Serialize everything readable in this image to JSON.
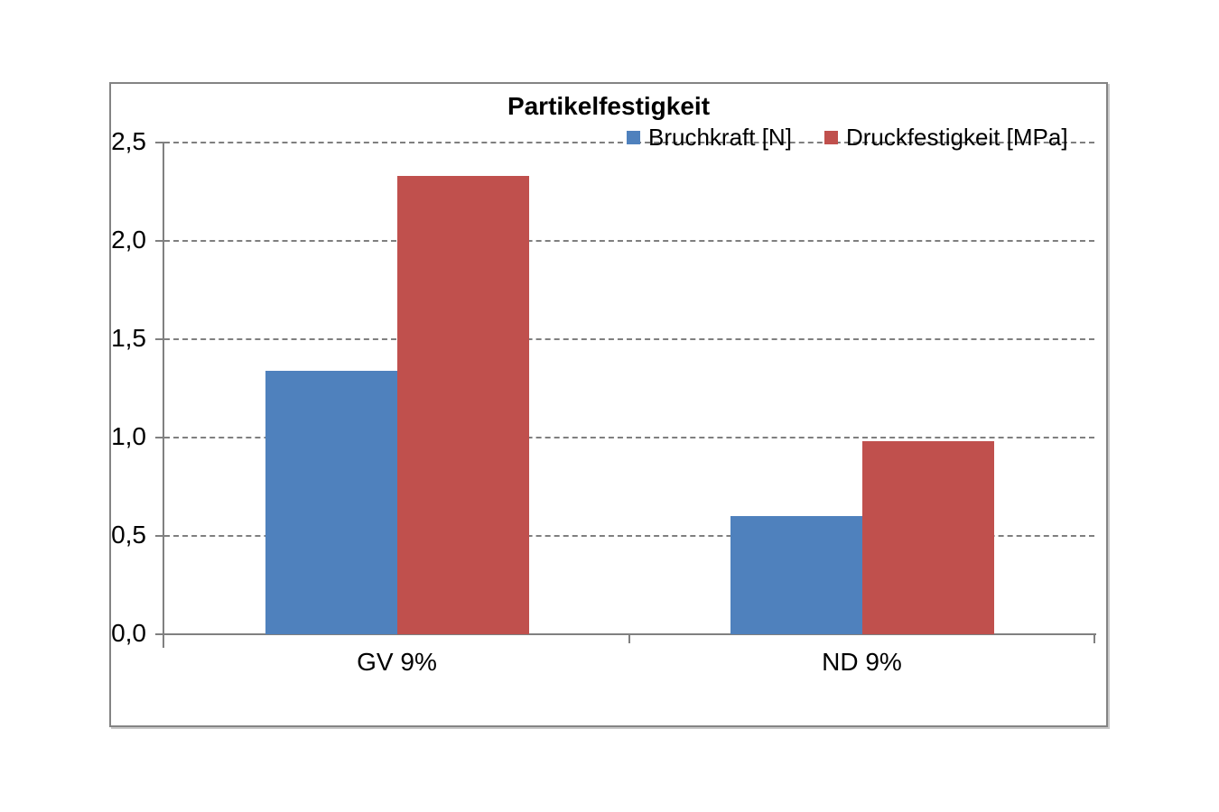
{
  "chart_data": {
    "type": "bar",
    "title": "Partikelfestigkeit",
    "categories": [
      "GV 9%",
      "ND 9%"
    ],
    "series": [
      {
        "name": "Bruchkraft [N]",
        "color": "#4F81BD",
        "values": [
          1.34,
          0.6
        ]
      },
      {
        "name": "Druckfestigkeit [MPa]",
        "color": "#C0504D",
        "values": [
          2.33,
          0.98
        ]
      }
    ],
    "xlabel": "",
    "ylabel": "",
    "ylim": [
      0,
      2.5
    ],
    "ytick_step": 0.5,
    "ytick_labels": [
      "0,0",
      "0,5",
      "1,0",
      "1,5",
      "2,0",
      "2,5"
    ],
    "grid": "horizontal-dashed",
    "legend_position": "inside-top-right",
    "colors": {
      "axis": "#808080",
      "grid": "#7f7f7f",
      "text": "#000000",
      "frame_border": "#848484"
    }
  }
}
